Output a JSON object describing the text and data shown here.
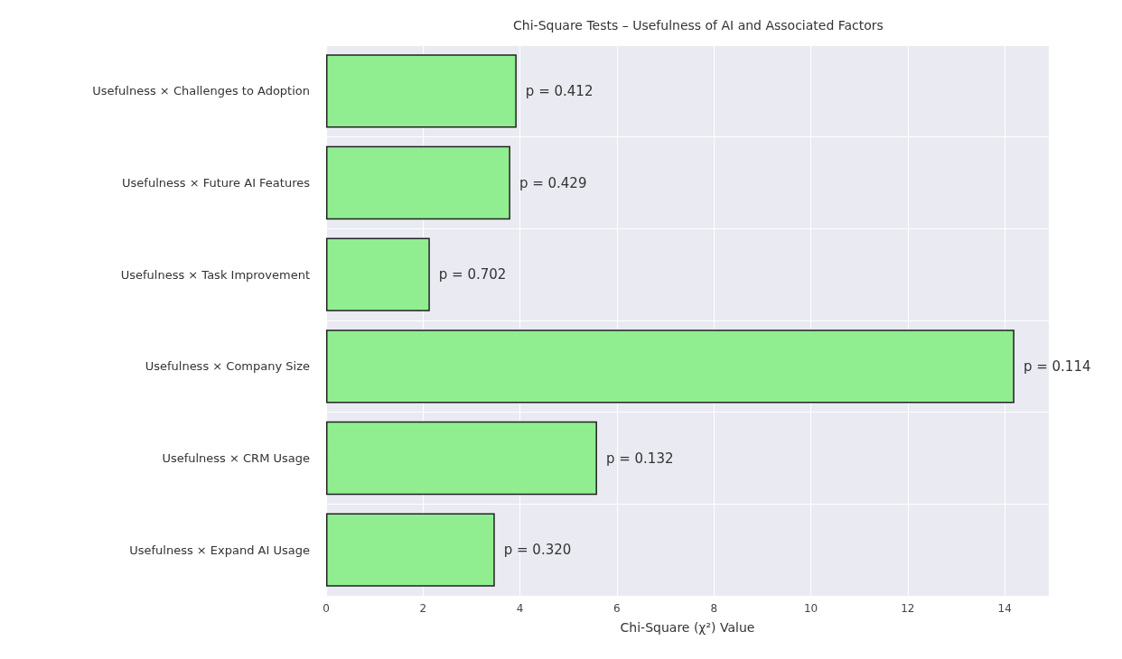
{
  "chart_data": {
    "type": "bar",
    "orientation": "horizontal",
    "title": "Chi-Square Tests – Usefulness of AI and Associated Factors",
    "xlabel": "Chi-Square (χ²) Value",
    "categories": [
      "Usefulness × Challenges to Adoption",
      "Usefulness × Future AI Features",
      "Usefulness × Task Improvement",
      "Usefulness × Company Size",
      "Usefulness × CRM Usage",
      "Usefulness × Expand AI Usage"
    ],
    "values": [
      3.93,
      3.8,
      2.14,
      14.2,
      5.59,
      3.48
    ],
    "annotations": [
      {
        "text": "p = 0.412",
        "x": 3.93,
        "y": "Usefulness × Challenges to Adoption"
      },
      {
        "text": "p = 0.429",
        "x": 3.8,
        "y": "Usefulness × Future AI Features"
      },
      {
        "text": "p = 0.702",
        "x": 2.14,
        "y": "Usefulness × Task Improvement"
      },
      {
        "text": "p = 0.114",
        "x": 14.2,
        "y": "Usefulness × Company Size"
      },
      {
        "text": "p = 0.132",
        "x": 5.59,
        "y": "Usefulness × CRM Usage"
      },
      {
        "text": "p = 0.320",
        "x": 3.48,
        "y": "Usefulness × Expand AI Usage"
      }
    ],
    "color": "#90ee90",
    "xlim": [
      0,
      14.91
    ],
    "xticks": [
      0,
      2,
      4,
      6,
      8,
      10,
      12,
      14
    ],
    "grid": true
  }
}
